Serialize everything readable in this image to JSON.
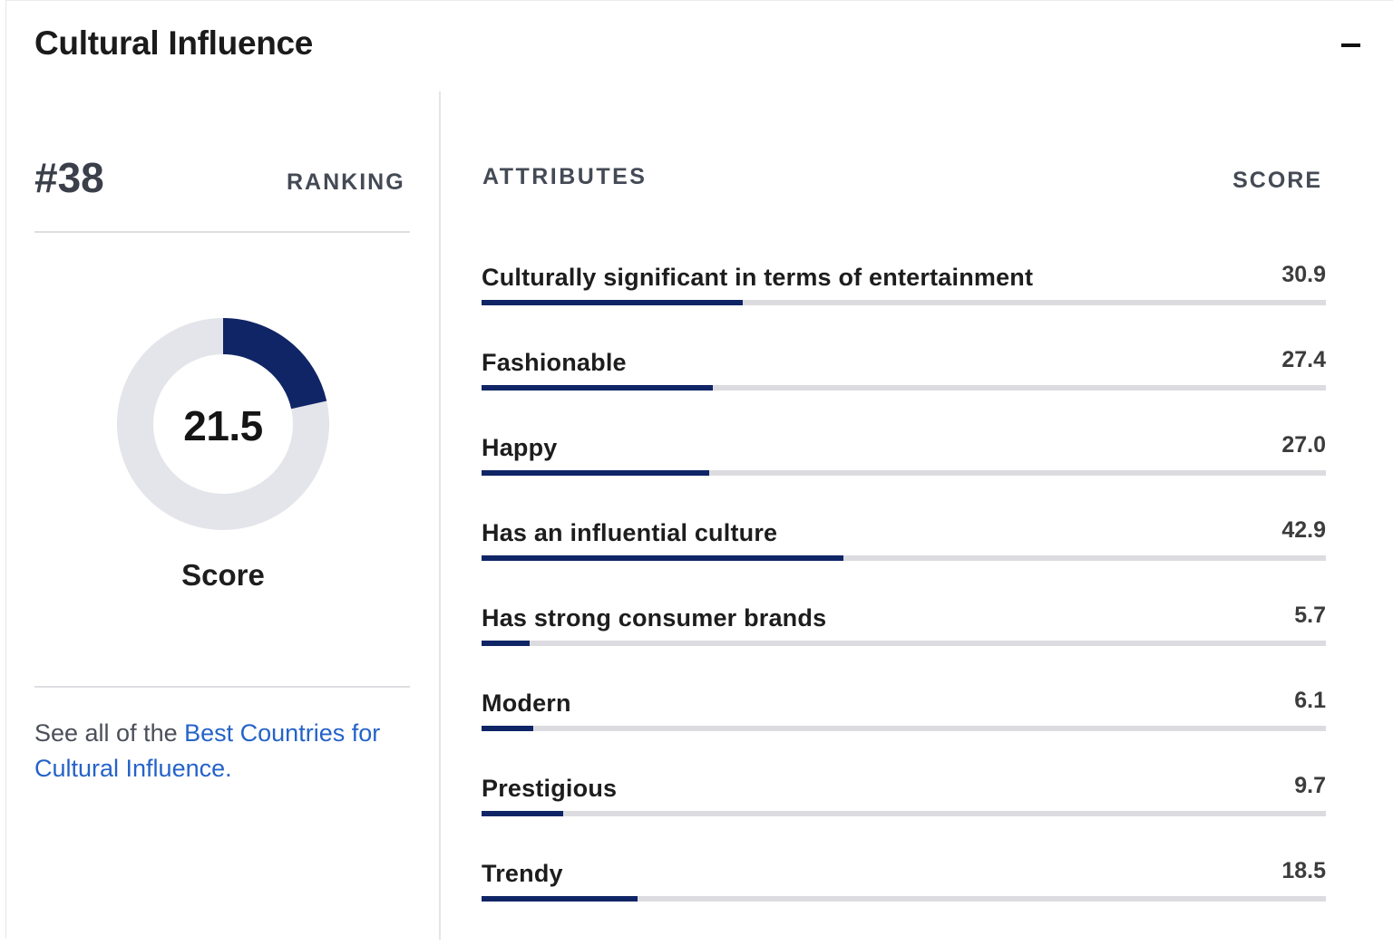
{
  "card": {
    "title": "Cultural Influence",
    "collapse_icon": "minus-icon"
  },
  "ranking": {
    "number": "#38",
    "label": "RANKING"
  },
  "overall": {
    "score": 21.5,
    "score_text": "21.5",
    "score_label": "Score",
    "max": 100
  },
  "footer_link": {
    "prefix": "See all of the ",
    "link_text": "Best Countries for Cultural Influence."
  },
  "attributes": {
    "header": "ATTRIBUTES",
    "score_header": "SCORE",
    "max": 100,
    "items": [
      {
        "label": "Culturally significant in terms of entertainment",
        "score": 30.9,
        "score_text": "30.9"
      },
      {
        "label": "Fashionable",
        "score": 27.4,
        "score_text": "27.4"
      },
      {
        "label": "Happy",
        "score": 27.0,
        "score_text": "27.0"
      },
      {
        "label": "Has an influential culture",
        "score": 42.9,
        "score_text": "42.9"
      },
      {
        "label": "Has strong consumer brands",
        "score": 5.7,
        "score_text": "5.7"
      },
      {
        "label": "Modern",
        "score": 6.1,
        "score_text": "6.1"
      },
      {
        "label": "Prestigious",
        "score": 9.7,
        "score_text": "9.7"
      },
      {
        "label": "Trendy",
        "score": 18.5,
        "score_text": "18.5"
      }
    ]
  },
  "colors": {
    "accent": "#0f2566",
    "track": "#dcdce0",
    "donut_track": "#e4e5ea",
    "link": "#2563c9"
  }
}
